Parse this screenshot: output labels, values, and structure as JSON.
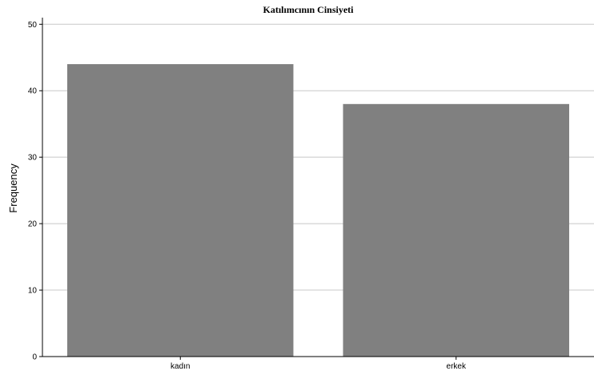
{
  "chart_data": {
    "type": "bar",
    "title": "Katılımcının Cinsiyeti",
    "xlabel": "",
    "ylabel": "Frequency",
    "categories": [
      "kadın",
      "erkek"
    ],
    "values": [
      44,
      38
    ],
    "ylim": [
      0,
      51
    ],
    "yticks": [
      0,
      10,
      20,
      30,
      40,
      50
    ],
    "grid": true,
    "legend": "none"
  },
  "colors": {
    "bar": "#808080",
    "grid": "#c8c8c8",
    "axis": "#000000",
    "background": "#ffffff"
  }
}
